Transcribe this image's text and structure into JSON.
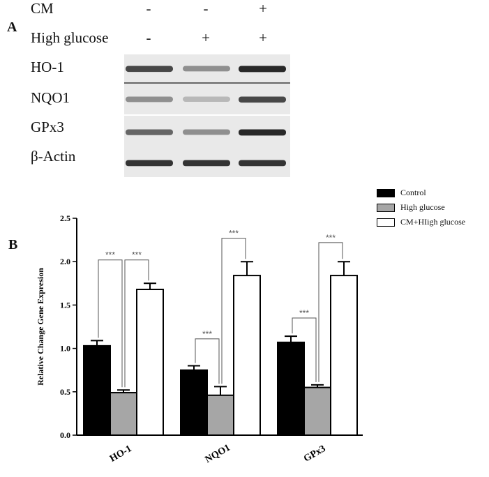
{
  "panel_a": {
    "letter": "A",
    "conditions": [
      {
        "name": "CM",
        "signs": [
          "-",
          "-",
          "+"
        ]
      },
      {
        "name": "High glucose",
        "signs": [
          "-",
          "+",
          "+"
        ]
      }
    ],
    "blot_rows": [
      "HO-1",
      "NQO1",
      "GPx3",
      "β-Actin"
    ],
    "band_intensity": [
      [
        0.8,
        0.45,
        0.95
      ],
      [
        0.45,
        0.25,
        0.8
      ],
      [
        0.65,
        0.45,
        0.95
      ],
      [
        0.9,
        0.9,
        0.9
      ]
    ]
  },
  "panel_b": {
    "letter": "B"
  },
  "colors": {
    "control": "#000000",
    "high_glucose": "#a6a6a6",
    "cm_high_glucose": "#ffffff"
  },
  "chart_data": {
    "type": "bar",
    "categories": [
      "HO-1",
      "NQO1",
      "GPx3"
    ],
    "series": [
      {
        "name": "Control",
        "values": [
          1.03,
          0.75,
          1.07
        ],
        "errors": [
          0.06,
          0.05,
          0.07
        ]
      },
      {
        "name": "High glucose",
        "values": [
          0.49,
          0.46,
          0.55
        ],
        "errors": [
          0.03,
          0.1,
          0.03
        ]
      },
      {
        "name": "CM+HIigh glucose",
        "values": [
          1.68,
          1.84,
          1.84
        ],
        "errors": [
          0.07,
          0.16,
          0.16
        ]
      }
    ],
    "ylabel": "Relative Change Gene Expresion",
    "xlabel": "",
    "ylim": [
      0,
      2.5
    ],
    "yticks": [
      "0.0",
      "0.5",
      "1.0",
      "1.5",
      "2.0",
      "2.5"
    ],
    "legend_position": "top-right",
    "significance": [
      {
        "category": 0,
        "from": 0,
        "to": 1,
        "label": "***",
        "bracket_y": 2.02
      },
      {
        "category": 0,
        "from": 1,
        "to": 2,
        "label": "***",
        "bracket_y": 2.02
      },
      {
        "category": 1,
        "from": 0,
        "to": 1,
        "label": "***",
        "bracket_y": 1.11
      },
      {
        "category": 1,
        "from": 1,
        "to": 2,
        "label": "***",
        "bracket_y": 2.27
      },
      {
        "category": 2,
        "from": 0,
        "to": 1,
        "label": "***",
        "bracket_y": 1.35
      },
      {
        "category": 2,
        "from": 1,
        "to": 2,
        "label": "***",
        "bracket_y": 2.22
      }
    ]
  }
}
